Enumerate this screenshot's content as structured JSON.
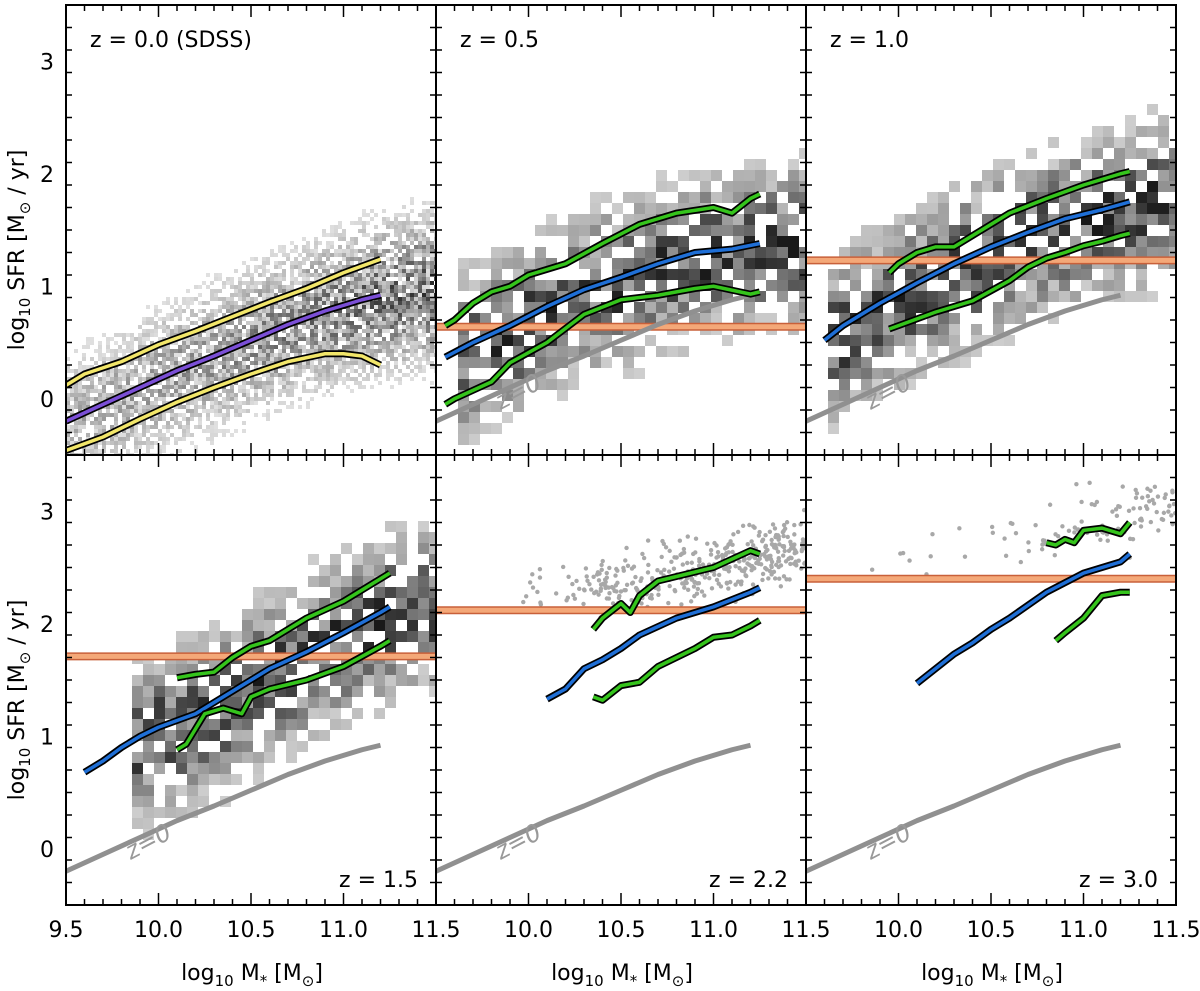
{
  "figure": {
    "ylabel": "log₁₀ SFR [M⊙ / yr]",
    "xlabel": "log₁₀ M* [M⊙]",
    "ylabel_main": "log",
    "ylabel_sub": "10",
    "ylabel_rest": " SFR [M",
    "ylabel_sun": "⊙",
    "ylabel_end": " / yr]",
    "xlabel_main": "log",
    "xlabel_sub": "10",
    "xlabel_rest": " M",
    "xlabel_star": "*",
    "xlabel_unit": " [M",
    "xlabel_sun": "⊙",
    "xlabel_end": "]"
  },
  "chart_data": [
    {
      "type": "line",
      "title": "z = 0.0 (SDSS)",
      "label_position": "top-left",
      "xlim": [
        9.5,
        11.5
      ],
      "ylim": [
        -0.5,
        3.5
      ],
      "background": "density-map",
      "series": [
        {
          "name": "median",
          "color": "#7b4fd6",
          "x": [
            9.5,
            9.7,
            9.9,
            10.1,
            10.3,
            10.5,
            10.7,
            10.9,
            11.1,
            11.2
          ],
          "values": [
            -0.2,
            -0.05,
            0.1,
            0.25,
            0.38,
            0.52,
            0.66,
            0.78,
            0.88,
            0.92
          ]
        },
        {
          "name": "upper",
          "color": "#f2e66a",
          "x": [
            9.5,
            9.6,
            9.8,
            10.0,
            10.2,
            10.4,
            10.6,
            10.8,
            11.0,
            11.2
          ],
          "values": [
            0.12,
            0.22,
            0.33,
            0.48,
            0.6,
            0.73,
            0.86,
            0.98,
            1.12,
            1.24
          ]
        },
        {
          "name": "lower",
          "color": "#f2e66a",
          "x": [
            9.5,
            9.7,
            9.9,
            10.1,
            10.3,
            10.5,
            10.7,
            10.9,
            11.0,
            11.1,
            11.2
          ],
          "values": [
            -0.46,
            -0.34,
            -0.18,
            -0.03,
            0.1,
            0.22,
            0.33,
            0.4,
            0.4,
            0.38,
            0.3
          ]
        }
      ],
      "threshold": null,
      "z0_reference": null
    },
    {
      "type": "line",
      "title": "z = 0.5",
      "label_position": "top-left",
      "xlim": [
        9.5,
        11.5
      ],
      "ylim": [
        -0.5,
        3.5
      ],
      "background": "density-map",
      "series": [
        {
          "name": "median",
          "color": "#1f6fd6",
          "x": [
            9.55,
            9.7,
            9.9,
            10.1,
            10.3,
            10.5,
            10.7,
            10.9,
            11.1,
            11.25
          ],
          "values": [
            0.37,
            0.5,
            0.65,
            0.82,
            0.97,
            1.08,
            1.2,
            1.3,
            1.33,
            1.38
          ]
        },
        {
          "name": "upper",
          "color": "#35c41c",
          "x": [
            9.55,
            9.6,
            9.7,
            9.8,
            9.9,
            10.0,
            10.1,
            10.2,
            10.4,
            10.6,
            10.8,
            11.0,
            11.1,
            11.2,
            11.25
          ],
          "values": [
            0.65,
            0.7,
            0.85,
            0.95,
            1.0,
            1.1,
            1.15,
            1.2,
            1.38,
            1.55,
            1.65,
            1.7,
            1.65,
            1.78,
            1.82
          ]
        },
        {
          "name": "lower",
          "color": "#35c41c",
          "x": [
            9.55,
            9.6,
            9.8,
            9.9,
            10.1,
            10.3,
            10.5,
            10.7,
            10.9,
            11.0,
            11.2,
            11.25
          ],
          "values": [
            -0.05,
            0.0,
            0.15,
            0.32,
            0.5,
            0.75,
            0.88,
            0.92,
            0.98,
            1.0,
            0.93,
            0.95
          ]
        }
      ],
      "threshold": 0.64,
      "z0_reference": {
        "label": "z=0"
      }
    },
    {
      "type": "line",
      "title": "z = 1.0",
      "label_position": "top-left",
      "xlim": [
        9.5,
        11.5
      ],
      "ylim": [
        -0.5,
        3.5
      ],
      "background": "density-map",
      "series": [
        {
          "name": "median",
          "color": "#1f6fd6",
          "x": [
            9.6,
            9.7,
            9.8,
            9.9,
            10.1,
            10.3,
            10.5,
            10.7,
            10.9,
            11.1,
            11.25
          ],
          "values": [
            0.52,
            0.65,
            0.75,
            0.85,
            1.03,
            1.2,
            1.35,
            1.48,
            1.6,
            1.68,
            1.75
          ]
        },
        {
          "name": "upper",
          "color": "#35c41c",
          "x": [
            9.95,
            10.0,
            10.1,
            10.2,
            10.3,
            10.4,
            10.5,
            10.6,
            10.8,
            11.0,
            11.2,
            11.25
          ],
          "values": [
            1.12,
            1.2,
            1.3,
            1.35,
            1.35,
            1.45,
            1.55,
            1.65,
            1.78,
            1.9,
            2.0,
            2.02
          ]
        },
        {
          "name": "lower",
          "color": "#35c41c",
          "x": [
            9.95,
            10.0,
            10.2,
            10.4,
            10.6,
            10.7,
            10.8,
            10.9,
            11.0,
            11.1,
            11.2,
            11.25
          ],
          "values": [
            0.62,
            0.65,
            0.77,
            0.87,
            1.05,
            1.17,
            1.25,
            1.3,
            1.36,
            1.4,
            1.45,
            1.47
          ]
        }
      ],
      "threshold": 1.23,
      "z0_reference": {
        "label": "z=0"
      }
    },
    {
      "type": "line",
      "title": "z = 1.5",
      "label_position": "bottom-right",
      "xlim": [
        9.5,
        11.5
      ],
      "ylim": [
        -0.5,
        3.5
      ],
      "background": "density-map",
      "series": [
        {
          "name": "median",
          "color": "#1f6fd6",
          "x": [
            9.6,
            9.7,
            9.8,
            9.9,
            10.0,
            10.2,
            10.4,
            10.6,
            10.8,
            11.0,
            11.2,
            11.25
          ],
          "values": [
            0.68,
            0.78,
            0.9,
            1.0,
            1.08,
            1.2,
            1.4,
            1.6,
            1.75,
            1.92,
            2.1,
            2.15
          ]
        },
        {
          "name": "upper",
          "color": "#35c41c",
          "x": [
            10.1,
            10.2,
            10.3,
            10.4,
            10.5,
            10.6,
            10.8,
            11.0,
            11.2,
            11.25
          ],
          "values": [
            1.52,
            1.55,
            1.57,
            1.7,
            1.8,
            1.85,
            2.05,
            2.2,
            2.4,
            2.45
          ]
        },
        {
          "name": "lower",
          "color": "#35c41c",
          "x": [
            10.1,
            10.15,
            10.25,
            10.35,
            10.45,
            10.5,
            10.6,
            10.8,
            11.0,
            11.2,
            11.25
          ],
          "values": [
            0.88,
            0.93,
            1.2,
            1.25,
            1.2,
            1.35,
            1.42,
            1.5,
            1.62,
            1.8,
            1.85
          ]
        }
      ],
      "threshold": 1.71,
      "z0_reference": {
        "label": "z=0"
      }
    },
    {
      "type": "line",
      "title": "z = 2.2",
      "label_position": "bottom-right",
      "xlim": [
        9.5,
        11.5
      ],
      "ylim": [
        -0.5,
        3.5
      ],
      "background": "scatter-points",
      "series": [
        {
          "name": "median",
          "color": "#1f6fd6",
          "x": [
            10.1,
            10.2,
            10.3,
            10.4,
            10.5,
            10.6,
            10.8,
            11.0,
            11.2,
            11.25
          ],
          "values": [
            1.33,
            1.42,
            1.6,
            1.68,
            1.78,
            1.9,
            2.05,
            2.15,
            2.28,
            2.32
          ]
        },
        {
          "name": "upper",
          "color": "#35c41c",
          "x": [
            10.35,
            10.4,
            10.5,
            10.55,
            10.6,
            10.7,
            10.8,
            11.0,
            11.2,
            11.25
          ],
          "values": [
            1.95,
            2.05,
            2.18,
            2.1,
            2.25,
            2.38,
            2.42,
            2.5,
            2.65,
            2.62
          ]
        },
        {
          "name": "lower",
          "color": "#35c41c",
          "x": [
            10.35,
            10.4,
            10.5,
            10.6,
            10.7,
            10.8,
            10.9,
            11.0,
            11.1,
            11.2,
            11.25
          ],
          "values": [
            1.35,
            1.32,
            1.45,
            1.48,
            1.62,
            1.7,
            1.78,
            1.88,
            1.9,
            1.98,
            2.03
          ]
        }
      ],
      "threshold": 2.12,
      "z0_reference": {
        "label": "z=0"
      }
    },
    {
      "type": "line",
      "title": "z = 3.0",
      "label_position": "bottom-right",
      "xlim": [
        9.5,
        11.5
      ],
      "ylim": [
        -0.5,
        3.5
      ],
      "background": "scatter-points",
      "series": [
        {
          "name": "median",
          "color": "#1f6fd6",
          "x": [
            10.1,
            10.2,
            10.3,
            10.4,
            10.5,
            10.6,
            10.8,
            11.0,
            11.2,
            11.25
          ],
          "values": [
            1.47,
            1.6,
            1.73,
            1.83,
            1.95,
            2.05,
            2.28,
            2.45,
            2.55,
            2.62
          ]
        },
        {
          "name": "upper",
          "color": "#35c41c",
          "x": [
            10.8,
            10.85,
            10.9,
            10.95,
            11.0,
            11.1,
            11.2,
            11.25
          ],
          "values": [
            2.72,
            2.7,
            2.75,
            2.72,
            2.83,
            2.85,
            2.8,
            2.9
          ]
        },
        {
          "name": "lower",
          "color": "#35c41c",
          "x": [
            10.85,
            10.9,
            11.0,
            11.1,
            11.2,
            11.25
          ],
          "values": [
            1.85,
            1.92,
            2.05,
            2.25,
            2.28,
            2.28
          ]
        }
      ],
      "threshold": 2.4,
      "z0_reference": {
        "label": "z=0"
      }
    }
  ],
  "z0_curve": {
    "x": [
      9.5,
      9.7,
      9.9,
      10.1,
      10.3,
      10.5,
      10.7,
      10.9,
      11.1,
      11.2
    ],
    "values": [
      -0.2,
      -0.05,
      0.1,
      0.25,
      0.38,
      0.52,
      0.66,
      0.78,
      0.88,
      0.92
    ],
    "color": "#909090"
  },
  "axes": {
    "x_ticks": [
      {
        "value": 9.5,
        "label": "9.5"
      },
      {
        "value": 10.0,
        "label": "10.0"
      },
      {
        "value": 10.5,
        "label": "10.5"
      },
      {
        "value": 11.0,
        "label": "11.0"
      },
      {
        "value": 11.5,
        "label": "11.5"
      }
    ],
    "y_ticks": [
      {
        "value": 0,
        "label": "0"
      },
      {
        "value": 1,
        "label": "1"
      },
      {
        "value": 2,
        "label": "2"
      },
      {
        "value": 3,
        "label": "3"
      }
    ]
  },
  "colors": {
    "threshold_band": "#f4a878",
    "threshold_edge": "#c8603a",
    "outline": "#000000",
    "density_dark": "#111111",
    "scatter_point": "#a8a8a8"
  }
}
